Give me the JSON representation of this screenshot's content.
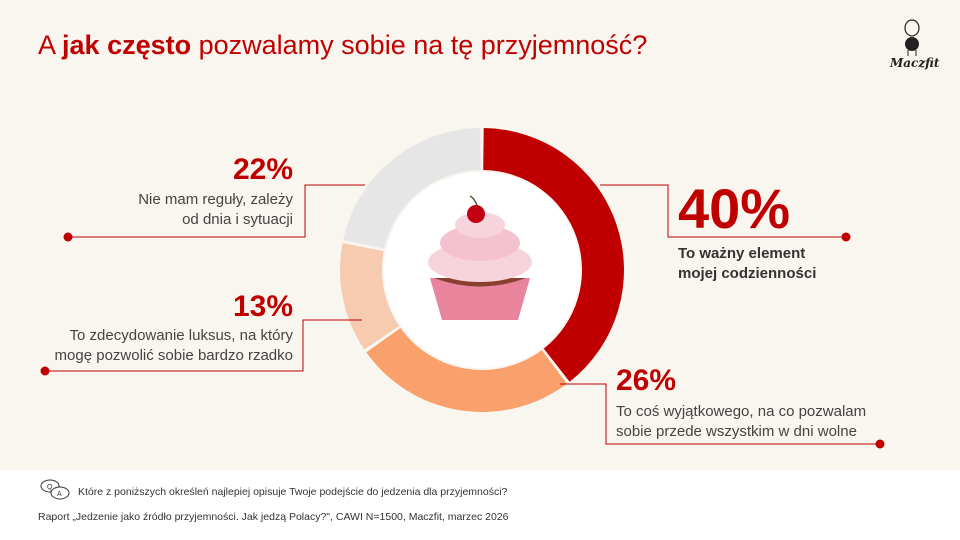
{
  "title": {
    "prefix": "A ",
    "bold": "jak często",
    "suffix": " pozwalamy sobie na tę przyjemność?"
  },
  "logo": "Maczfit",
  "chart_data": {
    "type": "pie",
    "donut": true,
    "start": "top",
    "direction": "clockwise",
    "slices": [
      {
        "label": "To ważny element mojej codzienności",
        "value": 40,
        "display": "40%",
        "color": "#c00000"
      },
      {
        "label": "To coś wyjątkowego, na co pozwalam sobie przede wszystkim w dni wolne",
        "value": 26,
        "display": "26%",
        "color": "#f9a06c"
      },
      {
        "label": "To zdecydowanie luksus, na który mogę pozwolić sobie bardzo rzadko",
        "value": 13,
        "display": "13%",
        "color": "#f6cbb0"
      },
      {
        "label": "Nie mam reguły, zależy od dnia i sytuacji",
        "value": 22,
        "display": "22%",
        "color": "#e6e6e6"
      }
    ]
  },
  "labels": {
    "s0": [
      "To ważny element",
      "mojej codzienności"
    ],
    "s1": [
      "To coś wyjątkowego, na co pozwalam",
      "sobie przede wszystkim w dni wolne"
    ],
    "s2": [
      "To zdecydowanie luksus, na który",
      "mogę pozwolić sobie bardzo rzadko"
    ],
    "s3": [
      "Nie mam reguły, zależy",
      "od dnia i sytuacji"
    ]
  },
  "footer": {
    "question": "Które z poniższych określeń najlepiej opisuje Twoje podejście do jedzenia dla przyjemności?",
    "source": "Raport „Jedzenie jako źródło przyjemności. Jak jedzą Polacy?\", CAWI N=1500, Maczfit, marzec 2026"
  }
}
